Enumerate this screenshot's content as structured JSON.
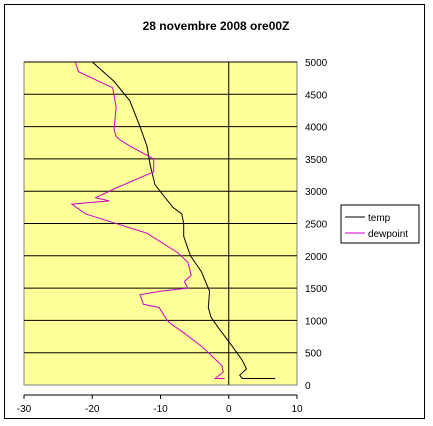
{
  "chart_data": {
    "type": "line",
    "title": "28 novembre 2008 ore00Z",
    "xlim": [
      -30,
      10
    ],
    "ylim": [
      0,
      5000
    ],
    "x_ticks": [
      -30,
      -20,
      -10,
      0,
      10
    ],
    "y_ticks": [
      0,
      500,
      1000,
      1500,
      2000,
      2500,
      3000,
      3500,
      4000,
      4500,
      5000
    ],
    "y_axis_side": "right",
    "grid": "horizontal",
    "legend_position": "right",
    "plot_background": "#FFFF99",
    "series": [
      {
        "name": "temp",
        "color": "#000000",
        "points": [
          [
            6.8,
            100
          ],
          [
            2.0,
            100
          ],
          [
            1.6,
            150
          ],
          [
            2.6,
            250
          ],
          [
            2.0,
            380
          ],
          [
            0.5,
            600
          ],
          [
            -1.6,
            900
          ],
          [
            -2.6,
            1050
          ],
          [
            -3.0,
            1200
          ],
          [
            -2.8,
            1450
          ],
          [
            -4.0,
            1750
          ],
          [
            -5.6,
            2000
          ],
          [
            -6.6,
            2300
          ],
          [
            -6.6,
            2500
          ],
          [
            -6.9,
            2650
          ],
          [
            -8.2,
            2750
          ],
          [
            -10.8,
            3100
          ],
          [
            -11.5,
            3400
          ],
          [
            -12.0,
            3700
          ],
          [
            -13.0,
            4000
          ],
          [
            -14.5,
            4400
          ],
          [
            -16.8,
            4700
          ],
          [
            -20.0,
            5000
          ]
        ]
      },
      {
        "name": "dewpoint",
        "color": "#CC00CC",
        "points": [
          [
            -0.6,
            100
          ],
          [
            -2.0,
            100
          ],
          [
            -0.8,
            200
          ],
          [
            -1.0,
            300
          ],
          [
            -2.5,
            450
          ],
          [
            -4.0,
            600
          ],
          [
            -6.5,
            800
          ],
          [
            -8.5,
            950
          ],
          [
            -9.0,
            1000
          ],
          [
            -10.2,
            1200
          ],
          [
            -12.5,
            1250
          ],
          [
            -13.0,
            1400
          ],
          [
            -10.0,
            1450
          ],
          [
            -6.0,
            1500
          ],
          [
            -6.5,
            1600
          ],
          [
            -5.5,
            1700
          ],
          [
            -6.0,
            1900
          ],
          [
            -7.5,
            2050
          ],
          [
            -12.0,
            2350
          ],
          [
            -18.0,
            2550
          ],
          [
            -21.0,
            2650
          ],
          [
            -23.0,
            2800
          ],
          [
            -17.5,
            2850
          ],
          [
            -19.5,
            2900
          ],
          [
            -16.5,
            3050
          ],
          [
            -11.0,
            3300
          ],
          [
            -11.0,
            3500
          ],
          [
            -14.5,
            3700
          ],
          [
            -16.0,
            3800
          ],
          [
            -16.5,
            3850
          ],
          [
            -16.8,
            3950
          ],
          [
            -16.5,
            4300
          ],
          [
            -17.0,
            4600
          ],
          [
            -19.0,
            4700
          ],
          [
            -22.0,
            4850
          ],
          [
            -22.5,
            5000
          ]
        ]
      }
    ]
  }
}
